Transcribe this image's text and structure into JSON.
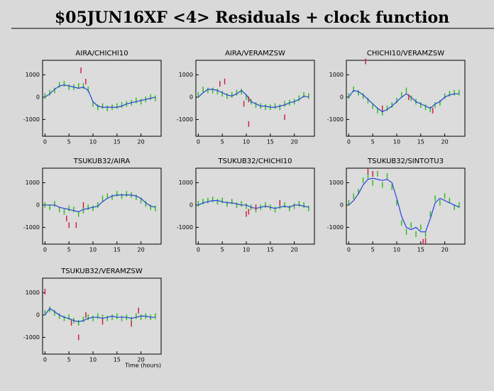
{
  "title": "$05JUN16XF <4> Residuals + clock function",
  "chart_data": [
    {
      "type": "line",
      "title": "AIRA/CHICHI10",
      "xlim": [
        -0.5,
        24.2
      ],
      "ylim": [
        -1750,
        1650
      ],
      "xticks": [
        0,
        5,
        10,
        15,
        20
      ],
      "yticks": [
        -1000,
        0,
        1000
      ],
      "x": [
        0,
        1,
        2,
        3,
        4,
        5,
        6,
        7,
        8,
        9,
        10,
        11,
        12,
        13,
        14,
        15,
        16,
        17,
        18,
        19,
        20,
        21,
        22,
        23
      ],
      "series": [
        {
          "color": "#33bb22",
          "marker": "point",
          "values": [
            50,
            200,
            300,
            550,
            600,
            450,
            450,
            500,
            500,
            350,
            -300,
            -450,
            -400,
            -500,
            -450,
            -400,
            -350,
            -300,
            -250,
            -150,
            -200,
            -100,
            0,
            -50
          ]
        },
        {
          "color": "#2244dd",
          "marker": "line",
          "values": [
            0,
            150,
            350,
            500,
            550,
            500,
            450,
            400,
            450,
            300,
            -200,
            -400,
            -450,
            -450,
            -450,
            -450,
            -400,
            -300,
            -250,
            -200,
            -150,
            -100,
            -50,
            0
          ]
        },
        {
          "color": "#cc2244",
          "marker": "point",
          "x": [
            7.5,
            8.5
          ],
          "values": [
            1200,
            700
          ]
        }
      ]
    },
    {
      "type": "line",
      "title": "AIRA/VERAMZSW",
      "xlim": [
        -0.5,
        24.2
      ],
      "ylim": [
        -1750,
        1650
      ],
      "xticks": [
        0,
        5,
        10,
        15,
        20
      ],
      "yticks": [
        -1000,
        0,
        1000
      ],
      "x": [
        0,
        1,
        2,
        3,
        4,
        5,
        6,
        7,
        8,
        9,
        10,
        11,
        12,
        13,
        14,
        15,
        16,
        17,
        18,
        19,
        20,
        21,
        22,
        23
      ],
      "series": [
        {
          "color": "#33bb22",
          "marker": "point",
          "values": [
            100,
            350,
            300,
            300,
            250,
            150,
            50,
            100,
            200,
            250,
            0,
            -200,
            -350,
            -400,
            -450,
            -450,
            -400,
            -450,
            -300,
            -250,
            -200,
            -50,
            100,
            50
          ]
        },
        {
          "color": "#2244dd",
          "marker": "line",
          "values": [
            0,
            200,
            350,
            350,
            300,
            200,
            100,
            50,
            150,
            300,
            100,
            -200,
            -300,
            -400,
            -400,
            -450,
            -450,
            -400,
            -350,
            -250,
            -200,
            -100,
            50,
            0
          ]
        },
        {
          "color": "#cc2244",
          "marker": "point",
          "x": [
            4.5,
            5.5,
            9.5,
            10.5,
            10.5,
            18
          ],
          "values": [
            600,
            700,
            -300,
            -100,
            -1200,
            -900
          ]
        }
      ]
    },
    {
      "type": "line",
      "title": "CHICHI10/VERAMZSW",
      "xlim": [
        -0.5,
        24.2
      ],
      "ylim": [
        -1750,
        1650
      ],
      "xticks": [
        0,
        5,
        10,
        15,
        20
      ],
      "yticks": [
        -1000,
        0,
        1000
      ],
      "x": [
        0,
        1,
        2,
        3,
        4,
        5,
        6,
        7,
        8,
        9,
        10,
        11,
        12,
        13,
        14,
        15,
        16,
        17,
        18,
        19,
        20,
        21,
        22,
        23
      ],
      "series": [
        {
          "color": "#33bb22",
          "marker": "point",
          "values": [
            50,
            350,
            200,
            50,
            -150,
            -400,
            -600,
            -700,
            -500,
            -350,
            -150,
            100,
            300,
            -50,
            -200,
            -350,
            -450,
            -550,
            -350,
            -250,
            50,
            150,
            200,
            200
          ]
        },
        {
          "color": "#2244dd",
          "marker": "line",
          "values": [
            0,
            300,
            250,
            100,
            -100,
            -300,
            -500,
            -650,
            -550,
            -400,
            -200,
            0,
            150,
            0,
            -200,
            -300,
            -400,
            -500,
            -300,
            -200,
            0,
            100,
            150,
            150
          ]
        },
        {
          "color": "#cc2244",
          "marker": "point",
          "x": [
            3.5,
            7,
            12.5,
            17.5
          ],
          "values": [
            1600,
            -500,
            0,
            -600
          ]
        }
      ]
    },
    {
      "type": "line",
      "title": "TSUKUB32/AIRA",
      "xlim": [
        -0.5,
        24.2
      ],
      "ylim": [
        -1750,
        1650
      ],
      "xticks": [
        0,
        5,
        10,
        15,
        20
      ],
      "yticks": [
        -1000,
        0,
        1000
      ],
      "x": [
        0,
        1,
        2,
        3,
        4,
        5,
        6,
        7,
        8,
        9,
        10,
        11,
        12,
        13,
        14,
        15,
        16,
        17,
        18,
        19,
        20,
        21,
        22,
        23
      ],
      "series": [
        {
          "color": "#33bb22",
          "marker": "point",
          "values": [
            0,
            -100,
            50,
            -200,
            -300,
            -150,
            -200,
            -400,
            -250,
            -100,
            -150,
            0,
            300,
            400,
            350,
            500,
            400,
            500,
            450,
            350,
            200,
            50,
            -100,
            -150
          ]
        },
        {
          "color": "#2244dd",
          "marker": "line",
          "values": [
            0,
            0,
            0,
            -100,
            -150,
            -200,
            -250,
            -300,
            -200,
            -150,
            -100,
            -50,
            150,
            300,
            400,
            450,
            450,
            450,
            450,
            400,
            300,
            100,
            -50,
            -100
          ]
        },
        {
          "color": "#cc2244",
          "marker": "point",
          "x": [
            4.5,
            5,
            6.5,
            8
          ],
          "values": [
            -600,
            -900,
            -900,
            0
          ]
        }
      ]
    },
    {
      "type": "line",
      "title": "TSUKUB32/CHICHI10",
      "xlim": [
        -0.5,
        24.2
      ],
      "ylim": [
        -1750,
        1650
      ],
      "xticks": [
        0,
        5,
        10,
        15,
        20
      ],
      "yticks": [
        -1000,
        0,
        1000
      ],
      "x": [
        0,
        1,
        2,
        3,
        4,
        5,
        6,
        7,
        8,
        9,
        10,
        11,
        12,
        13,
        14,
        15,
        16,
        17,
        18,
        19,
        20,
        21,
        22,
        23
      ],
      "series": [
        {
          "color": "#33bb22",
          "marker": "point",
          "values": [
            50,
            150,
            200,
            250,
            150,
            200,
            50,
            150,
            0,
            50,
            -50,
            -100,
            -200,
            -100,
            0,
            -100,
            -200,
            -50,
            0,
            -150,
            -50,
            50,
            0,
            -150
          ]
        },
        {
          "color": "#2244dd",
          "marker": "line",
          "values": [
            0,
            100,
            150,
            200,
            200,
            150,
            100,
            100,
            50,
            0,
            0,
            -100,
            -150,
            -100,
            -50,
            -100,
            -150,
            -100,
            -50,
            -100,
            0,
            0,
            -50,
            -100
          ]
        },
        {
          "color": "#cc2244",
          "marker": "point",
          "x": [
            10,
            10.5,
            12,
            17
          ],
          "values": [
            -400,
            -300,
            -100,
            100
          ]
        }
      ]
    },
    {
      "type": "line",
      "title": "TSUKUB32/SINTOTU3",
      "xlim": [
        -0.5,
        24.2
      ],
      "ylim": [
        -1750,
        1650
      ],
      "xticks": [
        0,
        5,
        10,
        15,
        20
      ],
      "yticks": [
        -1000,
        0,
        1000
      ],
      "x": [
        0,
        1,
        2,
        3,
        4,
        5,
        6,
        7,
        8,
        9,
        10,
        11,
        12,
        13,
        14,
        15,
        16,
        17,
        18,
        19,
        20,
        21,
        22,
        23
      ],
      "series": [
        {
          "color": "#33bb22",
          "marker": "point",
          "values": [
            100,
            400,
            600,
            1100,
            1300,
            1000,
            1400,
            900,
            1300,
            800,
            100,
            -800,
            -1200,
            -900,
            -1300,
            -1000,
            -1300,
            -400,
            300,
            100,
            400,
            200,
            -100,
            0
          ]
        },
        {
          "color": "#2244dd",
          "marker": "line",
          "values": [
            0,
            200,
            500,
            900,
            1150,
            1200,
            1150,
            1100,
            1150,
            1000,
            300,
            -500,
            -1000,
            -1100,
            -1000,
            -1200,
            -1200,
            -600,
            100,
            300,
            200,
            100,
            0,
            -100
          ]
        },
        {
          "color": "#cc2244",
          "marker": "point",
          "x": [
            4,
            5,
            15.5,
            16
          ],
          "values": [
            1500,
            1400,
            -1650,
            -1600
          ]
        }
      ]
    },
    {
      "type": "line",
      "title": "TSUKUB32/VERAMZSW",
      "xlabel": "Time (hours)",
      "xlim": [
        -0.5,
        24.2
      ],
      "ylim": [
        -1750,
        1650
      ],
      "xticks": [
        0,
        5,
        10,
        15,
        20
      ],
      "yticks": [
        -1000,
        0,
        1000
      ],
      "x": [
        0,
        1,
        2,
        3,
        4,
        5,
        6,
        7,
        8,
        9,
        10,
        11,
        12,
        13,
        14,
        15,
        16,
        17,
        18,
        19,
        20,
        21,
        22,
        23
      ],
      "series": [
        {
          "color": "#33bb22",
          "marker": "point",
          "values": [
            100,
            250,
            100,
            -50,
            -150,
            -100,
            -250,
            -350,
            -200,
            -100,
            -150,
            -50,
            -100,
            -150,
            -100,
            -50,
            -150,
            -100,
            -200,
            -50,
            -100,
            -50,
            -100,
            -50
          ]
        },
        {
          "color": "#2244dd",
          "marker": "line",
          "values": [
            0,
            300,
            150,
            0,
            -100,
            -150,
            -250,
            -300,
            -250,
            -150,
            -100,
            -100,
            -150,
            -100,
            -50,
            -100,
            -100,
            -100,
            -150,
            -100,
            -50,
            -50,
            -100,
            -100
          ]
        },
        {
          "color": "#cc2244",
          "marker": "point",
          "x": [
            0,
            5.5,
            7,
            8.5,
            12,
            18,
            19.5
          ],
          "values": [
            1050,
            -350,
            -1000,
            0,
            -300,
            -400,
            200
          ]
        }
      ]
    }
  ]
}
